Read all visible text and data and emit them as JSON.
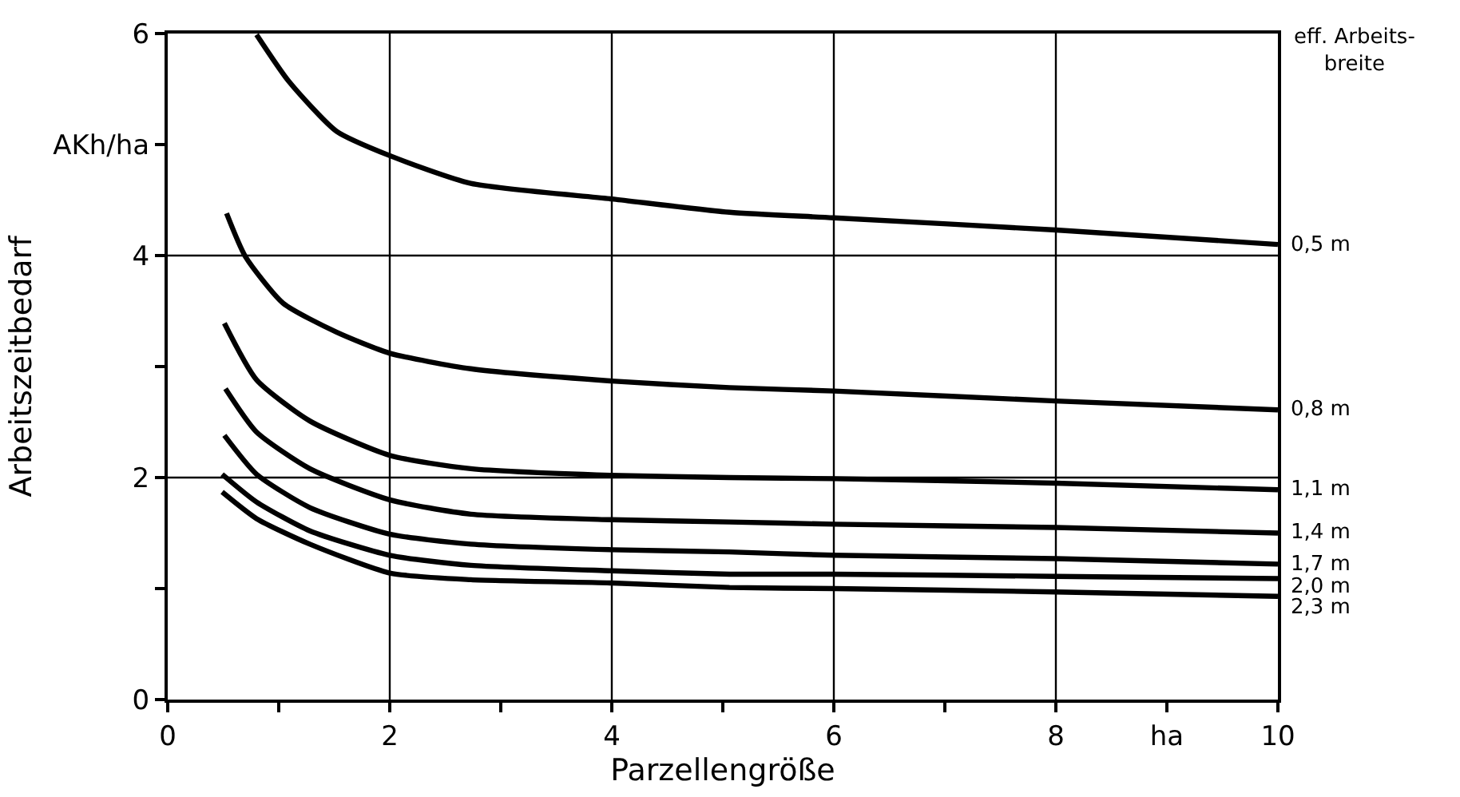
{
  "chart_data": {
    "type": "line",
    "xlabel": "Parzellengröße",
    "ylabel": "Arbeitszeitbedarf",
    "legend_title": "eff. Arbeits-\nbreite",
    "xlim": [
      0,
      10
    ],
    "ylim": [
      0,
      6
    ],
    "xticks": [
      0,
      {
        "value": 1,
        "label": null
      },
      2,
      {
        "value": 3,
        "label": null
      },
      4,
      {
        "value": 5,
        "label": null
      },
      6,
      {
        "value": 7,
        "label": null
      },
      8,
      {
        "value": 9,
        "label": "ha"
      },
      10
    ],
    "yticks": [
      0,
      {
        "value": 1,
        "label": null
      },
      2,
      {
        "value": 3,
        "label": null
      },
      4,
      {
        "value": 5,
        "label": "AKh/ha"
      },
      6
    ],
    "grid": true,
    "legend": false,
    "marker": "none",
    "line_style": "solid",
    "series": [
      {
        "name": "0,5 m",
        "color": "#000000",
        "x": [
          0.8,
          1.09,
          1.52,
          2.0,
          2.73,
          4.0,
          5.06,
          6.0,
          8.0,
          10.0
        ],
        "values": [
          5.99,
          5.57,
          5.12,
          4.9,
          4.65,
          4.51,
          4.39,
          4.34,
          4.23,
          4.1
        ]
      },
      {
        "name": "0,8 m",
        "color": "#000000",
        "x": [
          0.53,
          0.7,
          1.04,
          1.52,
          2.0,
          2.73,
          4.0,
          5.06,
          6.0,
          8.0,
          10.0
        ],
        "values": [
          4.38,
          3.99,
          3.57,
          3.31,
          3.12,
          2.98,
          2.87,
          2.81,
          2.78,
          2.69,
          2.61
        ]
      },
      {
        "name": "1,1 m",
        "color": "#000000",
        "x": [
          0.51,
          0.8,
          1.28,
          2.0,
          2.73,
          4.0,
          5.06,
          6.0,
          8.0,
          10.0
        ],
        "values": [
          3.39,
          2.88,
          2.51,
          2.2,
          2.08,
          2.02,
          2.0,
          1.99,
          1.95,
          1.89
        ]
      },
      {
        "name": "1,4 m",
        "color": "#000000",
        "x": [
          0.52,
          0.8,
          1.28,
          2.0,
          2.73,
          4.0,
          5.06,
          6.0,
          8.0,
          10.0
        ],
        "values": [
          2.8,
          2.41,
          2.08,
          1.8,
          1.67,
          1.62,
          1.6,
          1.58,
          1.55,
          1.5
        ]
      },
      {
        "name": "1,7 m",
        "color": "#000000",
        "x": [
          0.51,
          0.8,
          1.28,
          2.0,
          2.73,
          4.0,
          5.06,
          6.0,
          8.0,
          10.0
        ],
        "values": [
          2.38,
          2.03,
          1.73,
          1.49,
          1.4,
          1.35,
          1.33,
          1.3,
          1.27,
          1.22
        ]
      },
      {
        "name": "2,0 m",
        "color": "#000000",
        "x": [
          0.49,
          0.8,
          1.28,
          2.0,
          2.73,
          4.0,
          5.06,
          6.0,
          8.0,
          10.0
        ],
        "values": [
          2.03,
          1.78,
          1.52,
          1.3,
          1.21,
          1.16,
          1.13,
          1.13,
          1.11,
          1.09
        ]
      },
      {
        "name": "2,3 m",
        "color": "#000000",
        "x": [
          0.49,
          0.8,
          1.28,
          2.0,
          2.73,
          4.0,
          5.06,
          6.0,
          8.0,
          10.0
        ],
        "values": [
          1.87,
          1.63,
          1.4,
          1.14,
          1.08,
          1.05,
          1.01,
          1.0,
          0.97,
          0.93
        ]
      }
    ]
  }
}
